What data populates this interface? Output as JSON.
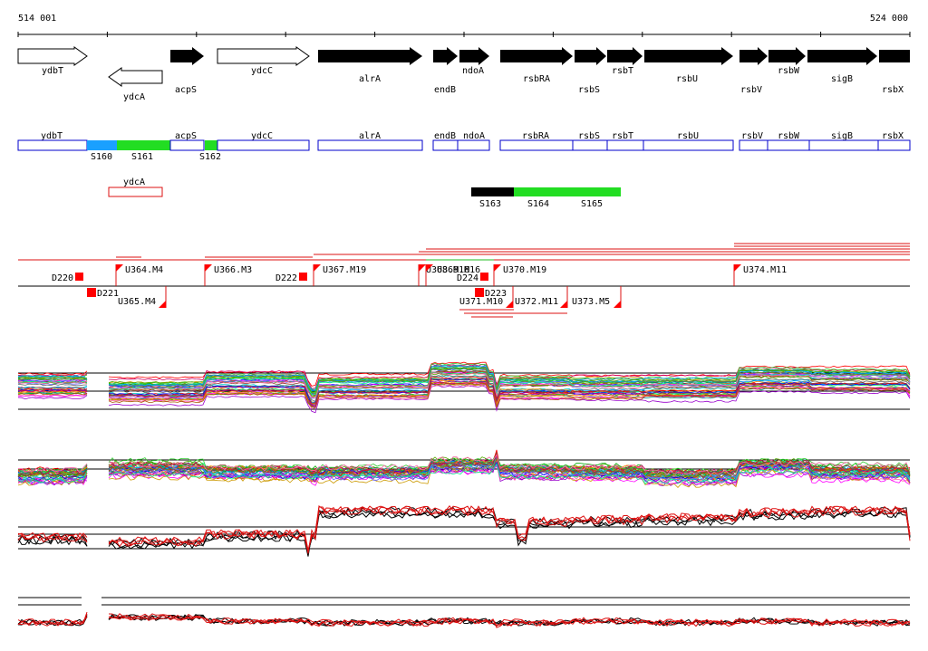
{
  "coords": {
    "start": "514 001",
    "end": "524 000"
  },
  "colors": {
    "gene": "#000000",
    "operon": "#0000cc",
    "segment_blue": "#1aa0ff",
    "segment_green": "#22dd22",
    "marker_red": "#ff0000",
    "line_red": "#dd1111"
  },
  "genes_forward": [
    {
      "name": "ydbT",
      "outline": true
    },
    {
      "name": "acpS",
      "outline": false
    },
    {
      "name": "ydcC",
      "outline": true
    },
    {
      "name": "alrA",
      "outline": false
    },
    {
      "name": "endB",
      "outline": false
    },
    {
      "name": "ndoA",
      "outline": false
    },
    {
      "name": "rsbRA",
      "outline": false
    },
    {
      "name": "rsbS",
      "outline": false
    },
    {
      "name": "rsbT",
      "outline": false
    },
    {
      "name": "rsbU",
      "outline": false
    },
    {
      "name": "rsbV",
      "outline": false
    },
    {
      "name": "rsbW",
      "outline": false
    },
    {
      "name": "sigB",
      "outline": false
    },
    {
      "name": "rsbX",
      "outline": false
    }
  ],
  "genes_reverse": [
    {
      "name": "ydcA"
    }
  ],
  "operon_boxes": [
    "ydbT",
    "acpS",
    "ydcC",
    "alrA",
    "endB",
    "ndoA",
    "rsbRA",
    "rsbS",
    "rsbT",
    "rsbU",
    "rsbV",
    "rsbW",
    "sigB",
    "rsbX"
  ],
  "operon_segments": [
    "S160",
    "S161",
    "S162"
  ],
  "reverse_box": "ydcA",
  "reverse_segments": [
    "S163",
    "S164",
    "S165"
  ],
  "upper_markers": [
    "U364.M4",
    "U366.M3",
    "U367.M19",
    "U368.M16",
    "U369.M16",
    "U370.M19",
    "U374.M11"
  ],
  "lower_markers": [
    "U365.M4",
    "U371.M10",
    "U372.M11",
    "U373.M5"
  ],
  "d_labels": [
    "D220",
    "D221",
    "D222",
    "D223",
    "D224"
  ]
}
